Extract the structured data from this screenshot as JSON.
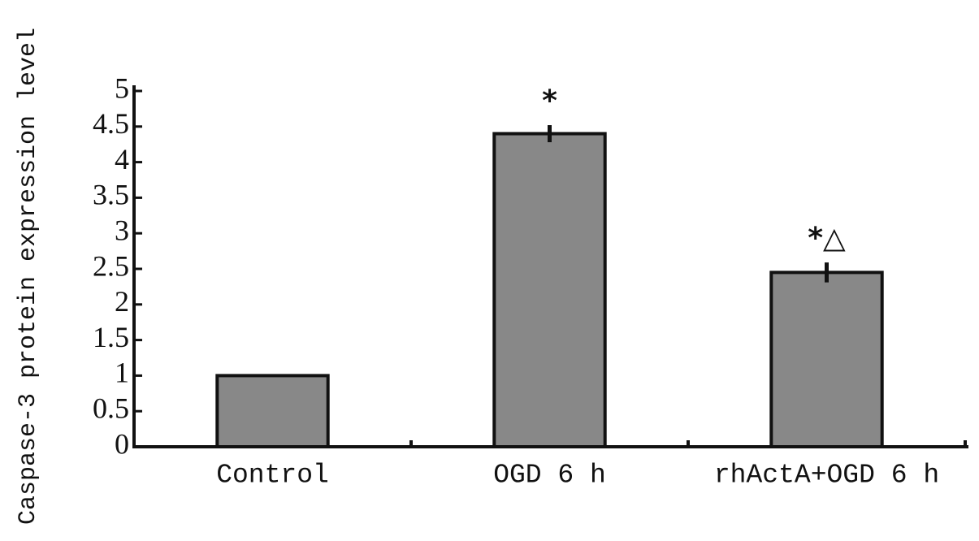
{
  "chart_data": {
    "type": "bar",
    "y_label": "Caspase-3 protein expression level",
    "categories": [
      "Control",
      "OGD 6 h",
      "rhActA+OGD 6 h"
    ],
    "values": [
      1.0,
      4.4,
      2.45
    ],
    "errors": [
      null,
      0.12,
      0.14
    ],
    "color": "#888888",
    "ylim": [
      0,
      5
    ],
    "yticks": [
      0,
      0.5,
      1,
      1.5,
      2,
      2.5,
      3,
      3.5,
      4,
      4.5,
      5
    ],
    "annotations": [
      {
        "category": "OGD 6 h",
        "text": "*"
      },
      {
        "category": "rhActA+OGD 6 h",
        "text": "*△"
      }
    ]
  }
}
